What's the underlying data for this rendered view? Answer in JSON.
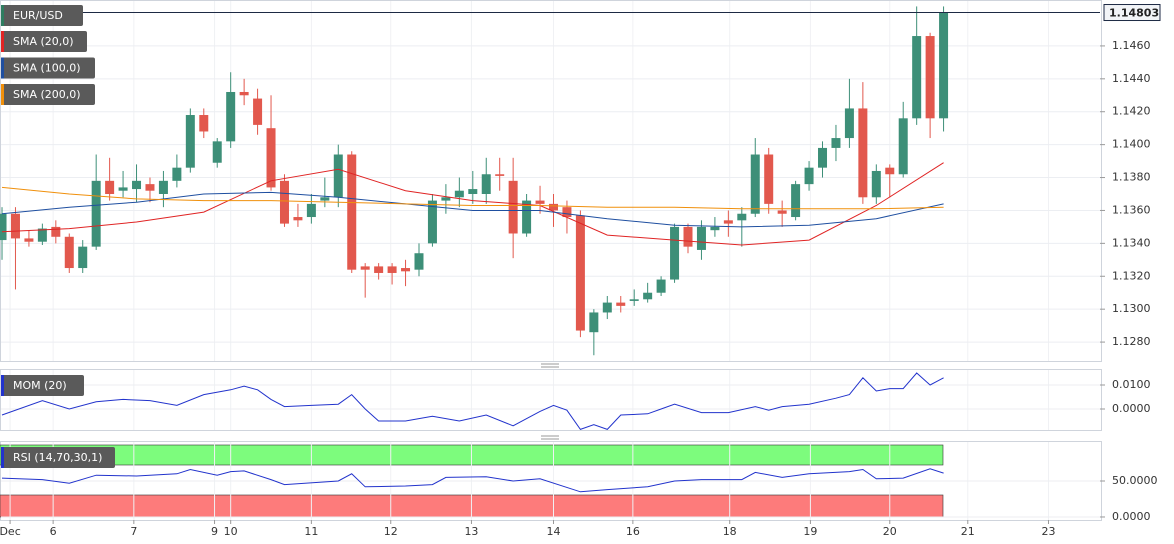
{
  "chart_data": [
    {
      "type": "candlestick",
      "title": "EUR/USD",
      "up_color": "#3d8f78",
      "down_color": "#e2584d",
      "open": [
        1.1342,
        1.1358,
        1.1343,
        1.1341,
        1.135,
        1.1344,
        1.1325,
        1.1338,
        1.1378,
        1.1372,
        1.1373,
        1.1376,
        1.137,
        1.1378,
        1.1386,
        1.1418,
        1.1389,
        1.1402,
        1.1432,
        1.1428,
        1.141,
        1.1378,
        1.1356,
        1.1356,
        1.1366,
        1.1368,
        1.1394,
        1.1326,
        1.1326,
        1.1326,
        1.1325,
        1.1324,
        1.134,
        1.1366,
        1.1368,
        1.137,
        1.137,
        1.1382,
        1.1378,
        1.1346,
        1.1366,
        1.1364,
        1.1362,
        1.1357,
        1.1286,
        1.1298,
        1.1304,
        1.1305,
        1.1306,
        1.131,
        1.1318,
        1.135,
        1.1336,
        1.1348,
        1.1354,
        1.1354,
        1.1358,
        1.1394,
        1.136,
        1.1356,
        1.1376,
        1.1386,
        1.1398,
        1.1404,
        1.1422,
        1.1368,
        1.1386,
        1.1382,
        1.1416,
        1.1466,
        1.1416
      ],
      "high": [
        1.1362,
        1.1362,
        1.1348,
        1.1352,
        1.1354,
        1.1346,
        1.1342,
        1.1394,
        1.1392,
        1.1384,
        1.1388,
        1.138,
        1.1384,
        1.1394,
        1.1422,
        1.1422,
        1.1404,
        1.1444,
        1.144,
        1.1434,
        1.143,
        1.1382,
        1.1364,
        1.137,
        1.138,
        1.14,
        1.1396,
        1.1328,
        1.1328,
        1.1328,
        1.133,
        1.134,
        1.137,
        1.1376,
        1.138,
        1.1384,
        1.1392,
        1.1392,
        1.1392,
        1.137,
        1.1375,
        1.137,
        1.1366,
        1.136,
        1.13,
        1.1308,
        1.1308,
        1.1312,
        1.1316,
        1.132,
        1.1352,
        1.1352,
        1.1354,
        1.1356,
        1.136,
        1.1362,
        1.1404,
        1.1398,
        1.1366,
        1.1378,
        1.139,
        1.1402,
        1.1412,
        1.144,
        1.1438,
        1.1388,
        1.1388,
        1.1426,
        1.1484,
        1.1468,
        1.1484
      ],
      "low": [
        1.133,
        1.1312,
        1.1338,
        1.1339,
        1.134,
        1.1322,
        1.1322,
        1.1336,
        1.1366,
        1.1368,
        1.1365,
        1.1365,
        1.1362,
        1.1374,
        1.1383,
        1.1404,
        1.1386,
        1.1398,
        1.1424,
        1.1406,
        1.1372,
        1.135,
        1.135,
        1.1352,
        1.1362,
        1.1362,
        1.1322,
        1.1307,
        1.1318,
        1.1315,
        1.1314,
        1.132,
        1.1338,
        1.1358,
        1.1362,
        1.1364,
        1.1364,
        1.1372,
        1.1331,
        1.1344,
        1.1358,
        1.135,
        1.1346,
        1.1283,
        1.1272,
        1.1294,
        1.1298,
        1.1302,
        1.1304,
        1.1308,
        1.1316,
        1.1334,
        1.133,
        1.1344,
        1.1344,
        1.1338,
        1.1356,
        1.1358,
        1.135,
        1.1354,
        1.1372,
        1.138,
        1.139,
        1.1398,
        1.1364,
        1.1364,
        1.1368,
        1.138,
        1.1412,
        1.1404,
        1.1408
      ],
      "close": [
        1.1358,
        1.1343,
        1.1341,
        1.1349,
        1.1344,
        1.1325,
        1.1338,
        1.1378,
        1.137,
        1.1374,
        1.1378,
        1.1372,
        1.1378,
        1.1386,
        1.1418,
        1.1408,
        1.1402,
        1.1432,
        1.143,
        1.1412,
        1.1374,
        1.1352,
        1.1354,
        1.1364,
        1.1368,
        1.1394,
        1.1324,
        1.1324,
        1.1322,
        1.1322,
        1.1323,
        1.1334,
        1.1366,
        1.1368,
        1.1372,
        1.1373,
        1.1382,
        1.1381,
        1.1346,
        1.1366,
        1.1364,
        1.136,
        1.1356,
        1.1287,
        1.1298,
        1.1304,
        1.1302,
        1.1306,
        1.131,
        1.1318,
        1.135,
        1.1338,
        1.135,
        1.135,
        1.1352,
        1.1358,
        1.1394,
        1.1364,
        1.1358,
        1.1376,
        1.1386,
        1.1398,
        1.1404,
        1.1422,
        1.1368,
        1.1384,
        1.1382,
        1.1416,
        1.1466,
        1.1416,
        1.14803
      ],
      "series": [
        {
          "name": "SMA (20,0)",
          "color": "#e02424",
          "x": [
            0,
            5,
            10,
            15,
            20,
            25,
            30,
            35,
            40,
            45,
            50,
            55,
            60,
            65,
            70
          ],
          "values": [
            1.1347,
            1.1349,
            1.1353,
            1.1359,
            1.1378,
            1.1385,
            1.1372,
            1.1366,
            1.1363,
            1.1345,
            1.1342,
            1.1339,
            1.1342,
            1.1363,
            1.1389
          ]
        },
        {
          "name": "SMA (100,0)",
          "color": "#1f4fa0",
          "x": [
            0,
            5,
            10,
            15,
            20,
            25,
            30,
            35,
            40,
            45,
            50,
            55,
            60,
            65,
            70
          ],
          "values": [
            1.1358,
            1.1362,
            1.1365,
            1.137,
            1.1371,
            1.1368,
            1.1364,
            1.136,
            1.136,
            1.1355,
            1.1351,
            1.135,
            1.1351,
            1.1355,
            1.1364
          ]
        },
        {
          "name": "SMA (200,0)",
          "color": "#f0900c",
          "x": [
            0,
            5,
            10,
            15,
            20,
            25,
            30,
            35,
            40,
            45,
            50,
            55,
            60,
            65,
            70
          ],
          "values": [
            1.1374,
            1.137,
            1.1367,
            1.1366,
            1.1366,
            1.1365,
            1.1364,
            1.1363,
            1.1363,
            1.1362,
            1.1362,
            1.1361,
            1.1361,
            1.1361,
            1.1362
          ]
        }
      ],
      "last_price": 1.14803,
      "xlim": [
        -0.15,
        81.63
      ],
      "ylim": [
        1.12685,
        1.14873
      ],
      "yticks": [
        {
          "value": 1.128,
          "label": "1.1280"
        },
        {
          "value": 1.13,
          "label": "1.1300"
        },
        {
          "value": 1.132,
          "label": "1.1320"
        },
        {
          "value": 1.134,
          "label": "1.1340"
        },
        {
          "value": 1.136,
          "label": "1.1360"
        },
        {
          "value": 1.138,
          "label": "1.1380"
        },
        {
          "value": 1.14,
          "label": "1.1400"
        },
        {
          "value": 1.142,
          "label": "1.1420"
        },
        {
          "value": 1.144,
          "label": "1.1440"
        },
        {
          "value": 1.146,
          "label": "1.1460"
        }
      ],
      "xticks": [
        {
          "value": 0.6,
          "label": "Dec"
        },
        {
          "value": 3.8,
          "label": "6"
        },
        {
          "value": 9.8,
          "label": "7"
        },
        {
          "value": 15.8,
          "label": "9"
        },
        {
          "value": 17.0,
          "label": "10"
        },
        {
          "value": 23.0,
          "label": "11"
        },
        {
          "value": 28.9,
          "label": "12"
        },
        {
          "value": 34.9,
          "label": "13"
        },
        {
          "value": 41.0,
          "label": "14"
        },
        {
          "value": 46.9,
          "label": "16"
        },
        {
          "value": 54.1,
          "label": "18"
        },
        {
          "value": 60.1,
          "label": "19"
        },
        {
          "value": 66.0,
          "label": "20"
        },
        {
          "value": 71.8,
          "label": "21"
        },
        {
          "value": 77.8,
          "label": "23"
        }
      ],
      "grid": true
    },
    {
      "type": "line",
      "series": [
        {
          "name": "MOM (20)",
          "color": "#2233cc",
          "x": [
            0,
            3,
            5,
            7,
            9,
            11,
            13,
            15,
            17,
            18,
            19,
            20,
            21,
            23,
            25,
            26,
            27,
            28,
            30,
            32,
            34,
            36,
            38,
            40,
            41,
            42,
            43,
            44,
            45,
            46,
            48,
            49,
            50,
            52,
            54,
            56,
            57,
            58,
            60,
            62,
            63,
            64,
            65,
            66,
            67,
            68,
            69,
            70
          ],
          "values": [
            -0.0025,
            0.0035,
            0.0,
            0.003,
            0.004,
            0.0035,
            0.0015,
            0.006,
            0.008,
            0.0095,
            0.008,
            0.004,
            0.001,
            0.0015,
            0.002,
            0.006,
            0.0,
            -0.005,
            -0.005,
            -0.003,
            -0.005,
            -0.0025,
            -0.007,
            -0.001,
            0.0015,
            -0.0005,
            -0.0085,
            -0.0065,
            -0.0085,
            -0.0025,
            -0.002,
            0.0,
            0.002,
            -0.0015,
            -0.0015,
            0.001,
            -0.0005,
            0.001,
            0.002,
            0.0045,
            0.006,
            0.013,
            0.0075,
            0.0085,
            0.0085,
            0.015,
            0.01,
            0.013
          ]
        }
      ],
      "ylim": [
        -0.00875,
        0.01625
      ],
      "yticks": [
        {
          "value": 0.0,
          "label": "0.0000"
        },
        {
          "value": 0.01,
          "label": "0.0100"
        }
      ]
    },
    {
      "type": "line",
      "series": [
        {
          "name": "RSI (14,70,30,1)",
          "color": "#2233cc",
          "x": [
            0,
            3,
            5,
            7,
            10,
            13,
            14,
            16,
            17,
            18,
            20,
            21,
            25,
            26,
            27,
            30,
            32,
            33,
            36,
            38,
            40,
            43,
            45,
            48,
            50,
            52,
            55,
            56,
            58,
            60,
            63,
            64,
            65,
            67,
            69,
            70
          ],
          "values": [
            54,
            52,
            47,
            58,
            57,
            60,
            66,
            58,
            63,
            64,
            52,
            45,
            50,
            60,
            42,
            43,
            45,
            55,
            56,
            50,
            53,
            35,
            38,
            42,
            50,
            52,
            52,
            62,
            55,
            60,
            63,
            66,
            53,
            54,
            67,
            61
          ]
        }
      ],
      "ylim": [
        -4.2,
        104.2
      ],
      "yticks": [
        {
          "value": 0,
          "label": "0.0000"
        },
        {
          "value": 50,
          "label": "50.0000"
        }
      ]
    }
  ]
}
